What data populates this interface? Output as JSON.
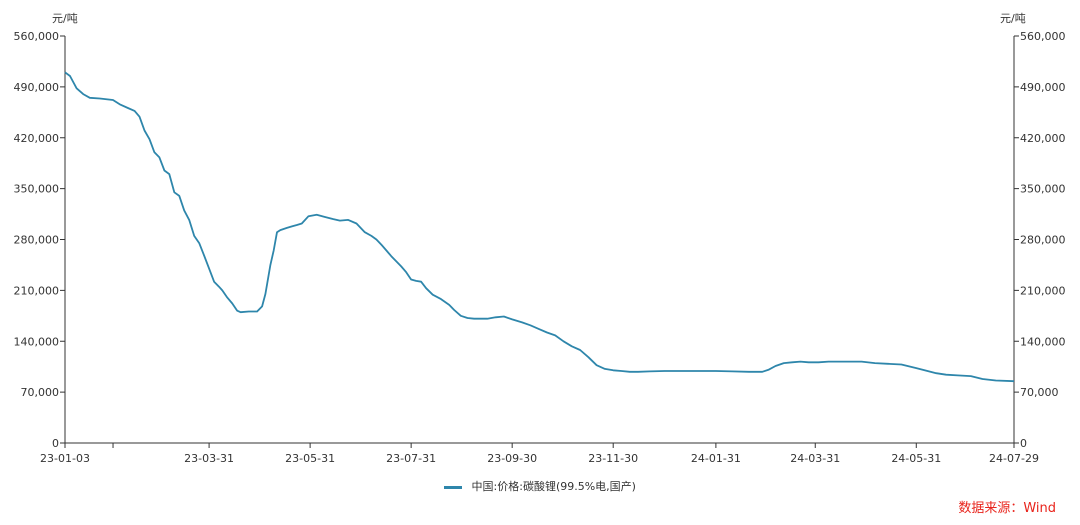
{
  "chart_data": {
    "type": "line",
    "ylabel_left": "元/吨",
    "ylabel_right": "元/吨",
    "ylim": [
      0,
      560000
    ],
    "yticks": [
      "0",
      "70,000",
      "140,000",
      "210,000",
      "280,000",
      "350,000",
      "420,000",
      "490,000",
      "560,000"
    ],
    "yticks_right": [
      "0",
      "70,000",
      "140,000",
      "210,000",
      "280,000",
      "350,000",
      "420,000",
      "490,000",
      "560,000"
    ],
    "ytick_values": [
      0,
      70000,
      140000,
      210000,
      280000,
      350000,
      420000,
      490000,
      560000
    ],
    "xlim": [
      "2023-01-03",
      "2024-07-29"
    ],
    "xtick_labels": [
      "23-01-03",
      "23-03-31",
      "23-05-31",
      "23-07-31",
      "23-09-30",
      "23-11-30",
      "24-01-31",
      "24-03-31",
      "24-05-31",
      "24-07-29"
    ],
    "xtick_dates": [
      "2023-01-03",
      "2023-03-31",
      "2023-05-31",
      "2023-07-31",
      "2023-09-30",
      "2023-11-30",
      "2024-01-31",
      "2024-03-31",
      "2024-05-31",
      "2024-07-29"
    ],
    "grid": false,
    "legend_position": "bottom-center",
    "series": [
      {
        "name": "中国:价格:碳酸锂(99.5%电,国产)",
        "color": "#2e86ab",
        "x": [
          "2023-01-03",
          "2023-01-06",
          "2023-01-10",
          "2023-01-14",
          "2023-01-18",
          "2023-01-24",
          "2023-02-01",
          "2023-02-05",
          "2023-02-10",
          "2023-02-14",
          "2023-02-17",
          "2023-02-20",
          "2023-02-23",
          "2023-02-26",
          "2023-03-01",
          "2023-03-04",
          "2023-03-07",
          "2023-03-10",
          "2023-03-13",
          "2023-03-16",
          "2023-03-19",
          "2023-03-22",
          "2023-03-25",
          "2023-03-28",
          "2023-03-31",
          "2023-04-03",
          "2023-04-06",
          "2023-04-08",
          "2023-04-11",
          "2023-04-14",
          "2023-04-17",
          "2023-04-19",
          "2023-04-24",
          "2023-04-29",
          "2023-05-02",
          "2023-05-04",
          "2023-05-07",
          "2023-05-09",
          "2023-05-11",
          "2023-05-13",
          "2023-05-17",
          "2023-05-20",
          "2023-05-23",
          "2023-05-26",
          "2023-05-30",
          "2023-06-04",
          "2023-06-09",
          "2023-06-14",
          "2023-06-18",
          "2023-06-23",
          "2023-06-28",
          "2023-07-03",
          "2023-07-07",
          "2023-07-10",
          "2023-07-13",
          "2023-07-16",
          "2023-07-19",
          "2023-07-22",
          "2023-07-25",
          "2023-07-28",
          "2023-07-31",
          "2023-08-03",
          "2023-08-06",
          "2023-08-09",
          "2023-08-13",
          "2023-08-18",
          "2023-08-23",
          "2023-08-26",
          "2023-08-30",
          "2023-09-03",
          "2023-09-07",
          "2023-09-11",
          "2023-09-15",
          "2023-09-20",
          "2023-09-25",
          "2023-09-30",
          "2023-10-06",
          "2023-10-11",
          "2023-10-16",
          "2023-10-21",
          "2023-10-26",
          "2023-10-31",
          "2023-11-05",
          "2023-11-10",
          "2023-11-15",
          "2023-11-20",
          "2023-11-25",
          "2023-11-30",
          "2023-12-05",
          "2023-12-10",
          "2023-12-15",
          "2023-12-22",
          "2023-12-31",
          "2024-01-10",
          "2024-01-20",
          "2024-01-31",
          "2024-02-10",
          "2024-02-20",
          "2024-02-28",
          "2024-03-03",
          "2024-03-07",
          "2024-03-12",
          "2024-03-17",
          "2024-03-22",
          "2024-03-27",
          "2024-04-02",
          "2024-04-08",
          "2024-04-14",
          "2024-04-20",
          "2024-04-28",
          "2024-05-06",
          "2024-05-14",
          "2024-05-22",
          "2024-05-31",
          "2024-06-05",
          "2024-06-12",
          "2024-06-18",
          "2024-06-25",
          "2024-07-03",
          "2024-07-10",
          "2024-07-18",
          "2024-07-29"
        ],
        "values": [
          510000,
          505000,
          488000,
          480000,
          475000,
          474000,
          472000,
          466000,
          461000,
          457000,
          449000,
          430000,
          418000,
          400000,
          393000,
          375000,
          370000,
          345000,
          340000,
          320000,
          307000,
          285000,
          275000,
          258000,
          240000,
          222000,
          215000,
          210000,
          200000,
          192000,
          182000,
          180000,
          181000,
          181000,
          188000,
          205000,
          245000,
          265000,
          290000,
          293000,
          296000,
          298000,
          300000,
          302000,
          312000,
          314000,
          311000,
          308000,
          306000,
          307000,
          302000,
          290000,
          285000,
          280000,
          273000,
          265000,
          257000,
          250000,
          243000,
          235000,
          225000,
          223000,
          222000,
          213000,
          204000,
          198000,
          190000,
          183000,
          175000,
          172000,
          171000,
          171000,
          171000,
          173000,
          174000,
          170000,
          166000,
          162000,
          157000,
          152000,
          148000,
          140000,
          133000,
          128000,
          118000,
          107000,
          102000,
          100000,
          99000,
          98000,
          98000,
          98500,
          99000,
          99000,
          99000,
          99000,
          98500,
          98000,
          98000,
          101000,
          106000,
          110000,
          111000,
          112000,
          111000,
          111000,
          112000,
          112000,
          112000,
          112000,
          110000,
          109000,
          108000,
          103000,
          100000,
          96000,
          94000,
          93000,
          92000,
          88000,
          86000,
          85000
        ]
      }
    ]
  },
  "source": {
    "text": "数据来源：Wind",
    "color": "#e8241c"
  }
}
